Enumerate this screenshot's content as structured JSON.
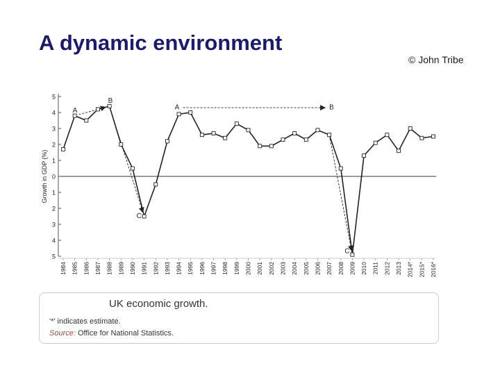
{
  "slide": {
    "title": "A dynamic environment",
    "copyright": "© John Tribe"
  },
  "caption": {
    "title": "UK economic growth.",
    "note": "'*' indicates estimate.",
    "source_label": "Source:",
    "source_text": "Office for National Statistics."
  },
  "colors": {
    "title": "#1c1a6b",
    "line": "#222222",
    "marker_fill": "#ffffff"
  },
  "chart_data": {
    "type": "line",
    "title": "UK economic growth.",
    "xlabel": "",
    "ylabel": "Growth in GDP (%)",
    "ylim": [
      -5,
      5
    ],
    "y_ticks": [
      5,
      4,
      3,
      2,
      1,
      0,
      -1,
      -2,
      -3,
      -4,
      -5
    ],
    "y_tick_labels": [
      "5",
      "4",
      "3",
      "2",
      "1",
      "0",
      "1",
      "2",
      "3",
      "4",
      "5"
    ],
    "categories": [
      "1984",
      "1985",
      "1986",
      "1987",
      "1988",
      "1989",
      "1990",
      "1991",
      "1992",
      "1993",
      "1994",
      "1995",
      "1996",
      "1997",
      "1998",
      "1999",
      "2000",
      "2001",
      "2002",
      "2003",
      "2004",
      "2005",
      "2006",
      "2007",
      "2008",
      "2009",
      "2010",
      "2011",
      "2012",
      "2013",
      "2014*",
      "2015*",
      "2016*"
    ],
    "values": [
      1.7,
      3.8,
      3.5,
      4.2,
      4.4,
      2.0,
      0.5,
      -2.5,
      -0.5,
      2.2,
      3.9,
      4.0,
      2.6,
      2.7,
      2.4,
      3.3,
      2.9,
      1.9,
      1.9,
      2.3,
      2.7,
      2.3,
      2.9,
      2.6,
      0.5,
      -4.9,
      1.3,
      2.1,
      2.6,
      1.6,
      3.0,
      2.4,
      2.5
    ],
    "zero_line": true,
    "annotations": [
      {
        "type": "arrow",
        "label_from": "A",
        "label_to": "B",
        "from": {
          "x": "1985",
          "y": 3.8
        },
        "to": {
          "x": "1988",
          "y": 4.4
        }
      },
      {
        "type": "arrow",
        "label_from": "B",
        "label_to": "C",
        "from": {
          "x": "1988",
          "y": 4.4
        },
        "to": {
          "x": "1991",
          "y": -2.5
        }
      },
      {
        "type": "arrow",
        "label_from": "A",
        "label_to": "B",
        "from": {
          "x": "1994",
          "y": 4.3
        },
        "to": {
          "x": "2007",
          "y": 4.3
        }
      },
      {
        "type": "arrow",
        "label_from": "B",
        "label_to": "C",
        "from": {
          "x": "2007",
          "y": 2.6
        },
        "to": {
          "x": "2009",
          "y": -4.9
        }
      }
    ]
  }
}
